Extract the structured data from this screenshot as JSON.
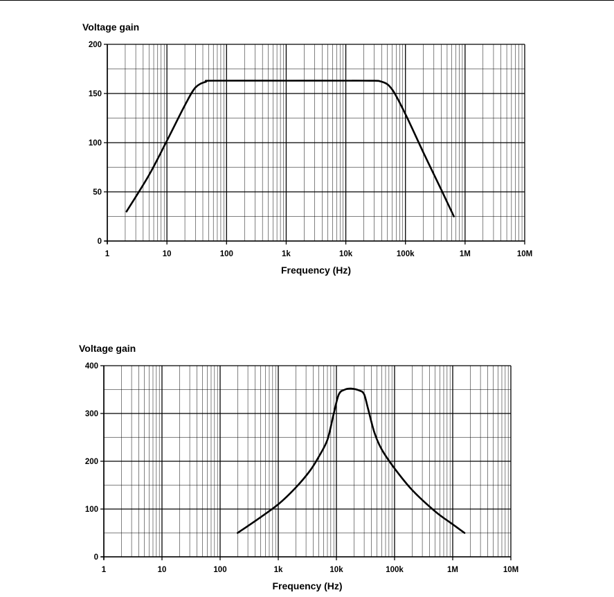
{
  "chart_data": [
    {
      "type": "line",
      "title": "",
      "ylabel": "Voltage gain",
      "xlabel": "Frequency (Hz)",
      "xscale": "log",
      "xlim": [
        1,
        10000000
      ],
      "ylim": [
        0,
        200
      ],
      "grid": true,
      "x_tick_labels": [
        "1",
        "10",
        "100",
        "1k",
        "10k",
        "100k",
        "1M",
        "10M"
      ],
      "y_tick_labels": [
        "0",
        "50",
        "100",
        "150",
        "200"
      ],
      "y_tick_values": [
        0,
        50,
        100,
        150,
        200
      ],
      "series": [
        {
          "color": "#000000",
          "points": [
            [
              2.1,
              30
            ],
            [
              5,
              67
            ],
            [
              10,
              102
            ],
            [
              20,
              138
            ],
            [
              30,
              156
            ],
            [
              45,
              162
            ],
            [
              60,
              163
            ],
            [
              1000,
              163
            ],
            [
              20000,
              163
            ],
            [
              40000,
              162
            ],
            [
              60000,
              154
            ],
            [
              100000,
              129
            ],
            [
              200000,
              90
            ],
            [
              400000,
              52
            ],
            [
              650000,
              25
            ]
          ]
        }
      ]
    },
    {
      "type": "line",
      "title": "",
      "ylabel": "Voltage gain",
      "xlabel": "Frequency (Hz)",
      "xscale": "log",
      "xlim": [
        1,
        10000000
      ],
      "ylim": [
        0,
        400
      ],
      "grid": true,
      "x_tick_labels": [
        "1",
        "10",
        "100",
        "1k",
        "10k",
        "100k",
        "1M",
        "10M"
      ],
      "y_tick_labels": [
        "0",
        "100",
        "200",
        "300",
        "400"
      ],
      "y_tick_values": [
        0,
        100,
        200,
        300,
        400
      ],
      "series": [
        {
          "color": "#000000",
          "points": [
            [
              200,
              50
            ],
            [
              400,
              75
            ],
            [
              1000,
              110
            ],
            [
              2000,
              145
            ],
            [
              3500,
              180
            ],
            [
              5000,
              210
            ],
            [
              7000,
              245
            ],
            [
              9000,
              300
            ],
            [
              11000,
              340
            ],
            [
              14000,
              350
            ],
            [
              18000,
              352
            ],
            [
              25000,
              348
            ],
            [
              30000,
              340
            ],
            [
              35000,
              310
            ],
            [
              45000,
              260
            ],
            [
              60000,
              225
            ],
            [
              100000,
              185
            ],
            [
              200000,
              140
            ],
            [
              500000,
              95
            ],
            [
              1000000,
              68
            ],
            [
              1600000,
              50
            ]
          ]
        }
      ]
    }
  ]
}
